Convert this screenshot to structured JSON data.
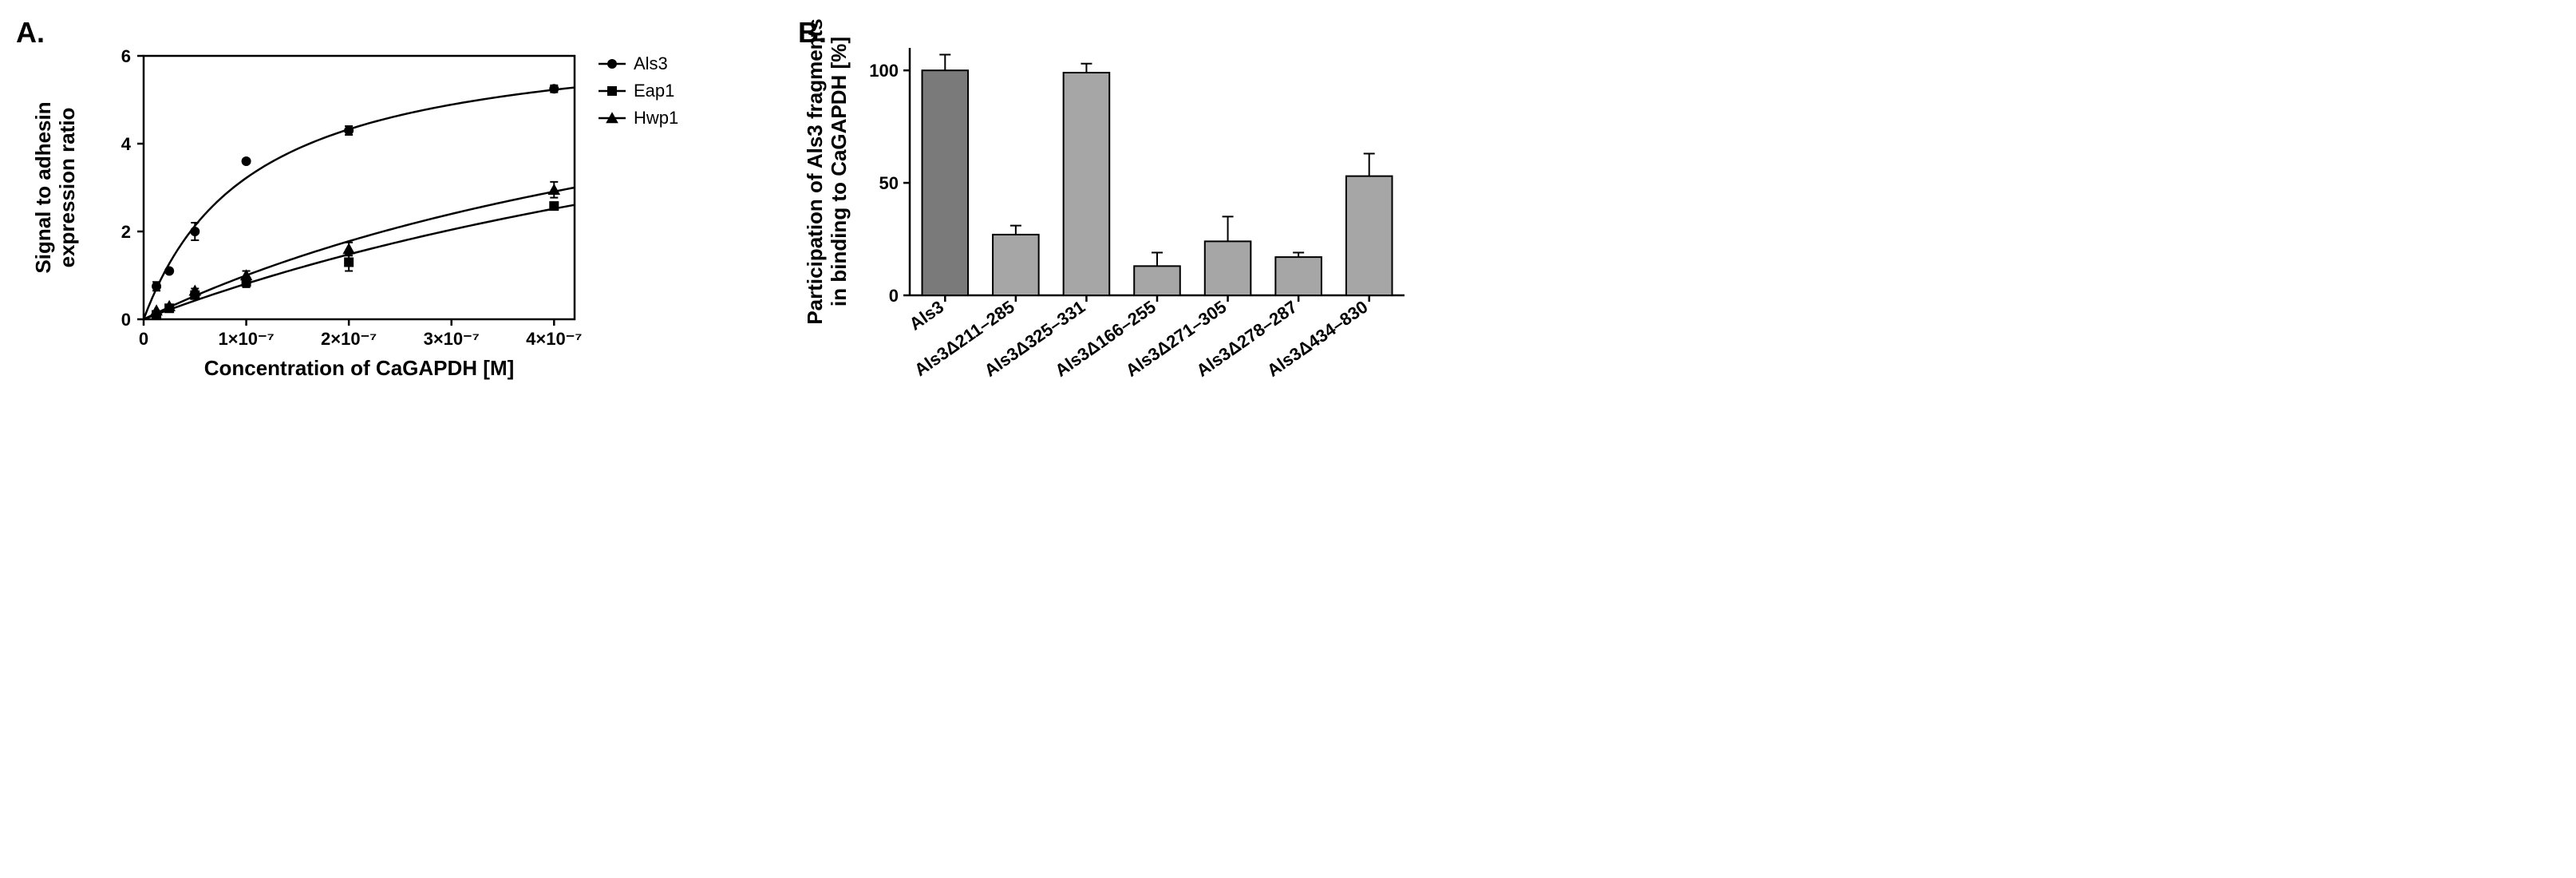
{
  "panelA": {
    "label": "A.",
    "type": "scatter+curve",
    "title_fontsize": 36,
    "xlabel": "Concentration of CaGAPDH [M]",
    "ylabel_line1": "Signal to adhesin",
    "ylabel_line2": "expression ratio",
    "label_fontsize": 26,
    "tick_fontsize": 22,
    "xlim": [
      0,
      4.2e-07
    ],
    "ylim": [
      0,
      6
    ],
    "xticks": [
      {
        "v": 0,
        "label": "0"
      },
      {
        "v": 1e-07,
        "label": "1×10⁻⁷"
      },
      {
        "v": 2e-07,
        "label": "2×10⁻⁷"
      },
      {
        "v": 3e-07,
        "label": "3×10⁻⁷"
      },
      {
        "v": 4e-07,
        "label": "4×10⁻⁷"
      }
    ],
    "yticks": [
      0,
      2,
      4,
      6
    ],
    "background_color": "#ffffff",
    "axis_line_width": 2.5,
    "curve_line_width": 2.5,
    "marker_size": 6,
    "legend": {
      "items": [
        {
          "label": "Als3",
          "marker": "circle"
        },
        {
          "label": "Eap1",
          "marker": "square"
        },
        {
          "label": "Hwp1",
          "marker": "triangle"
        }
      ]
    },
    "series": [
      {
        "name": "Als3",
        "marker": "circle",
        "points": [
          {
            "x": 1.25e-08,
            "y": 0.75,
            "err": 0.1
          },
          {
            "x": 2.5e-08,
            "y": 1.1,
            "err": 0.0
          },
          {
            "x": 5e-08,
            "y": 2.0,
            "err": 0.2
          },
          {
            "x": 1e-07,
            "y": 3.6,
            "err": 0.0
          },
          {
            "x": 2e-07,
            "y": 4.3,
            "err": 0.1
          },
          {
            "x": 4e-07,
            "y": 5.25,
            "err": 0.08
          }
        ],
        "curve": {
          "vmax": 6.6,
          "km": 1.05e-07
        }
      },
      {
        "name": "Hwp1",
        "marker": "triangle",
        "points": [
          {
            "x": 1.25e-08,
            "y": 0.2,
            "err": 0.0
          },
          {
            "x": 2.5e-08,
            "y": 0.3,
            "err": 0.0
          },
          {
            "x": 5e-08,
            "y": 0.65,
            "err": 0.05
          },
          {
            "x": 1e-07,
            "y": 1.0,
            "err": 0.1
          },
          {
            "x": 2e-07,
            "y": 1.6,
            "err": 0.15
          },
          {
            "x": 4e-07,
            "y": 2.95,
            "err": 0.18
          }
        ],
        "curve": {
          "vmax": 8.0,
          "km": 7e-07
        }
      },
      {
        "name": "Eap1",
        "marker": "square",
        "points": [
          {
            "x": 1.25e-08,
            "y": 0.1,
            "err": 0.0
          },
          {
            "x": 2.5e-08,
            "y": 0.25,
            "err": 0.0
          },
          {
            "x": 5e-08,
            "y": 0.55,
            "err": 0.0
          },
          {
            "x": 1e-07,
            "y": 0.85,
            "err": 0.12
          },
          {
            "x": 2e-07,
            "y": 1.3,
            "err": 0.2
          },
          {
            "x": 4e-07,
            "y": 2.58,
            "err": 0.0
          }
        ],
        "curve": {
          "vmax": 8.5,
          "km": 9.5e-07
        }
      }
    ]
  },
  "panelB": {
    "label": "B.",
    "type": "bar",
    "title_fontsize": 36,
    "ylabel_line1": "Participation of Als3 fragments",
    "ylabel_line2": "in binding to CaGAPDH [%]",
    "label_fontsize": 26,
    "tick_fontsize": 22,
    "ylim": [
      0,
      110
    ],
    "yticks": [
      0,
      50,
      100
    ],
    "bar_width": 0.65,
    "bar_border_color": "#000000",
    "bar_border_width": 2,
    "background_color": "#ffffff",
    "categories": [
      {
        "label": "Als3",
        "value": 100,
        "err": 7,
        "fill": "#7a7a7a"
      },
      {
        "label": "Als3Δ211–285",
        "value": 27,
        "err": 4,
        "fill": "#a6a6a6"
      },
      {
        "label": "Als3Δ325–331",
        "value": 99,
        "err": 4,
        "fill": "#a6a6a6"
      },
      {
        "label": "Als3Δ166–255",
        "value": 13,
        "err": 6,
        "fill": "#a6a6a6"
      },
      {
        "label": "Als3Δ271–305",
        "value": 24,
        "err": 11,
        "fill": "#a6a6a6"
      },
      {
        "label": "Als3Δ278–287",
        "value": 17,
        "err": 2,
        "fill": "#a6a6a6"
      },
      {
        "label": "Als3Δ434–830",
        "value": 53,
        "err": 10,
        "fill": "#a6a6a6"
      }
    ]
  }
}
